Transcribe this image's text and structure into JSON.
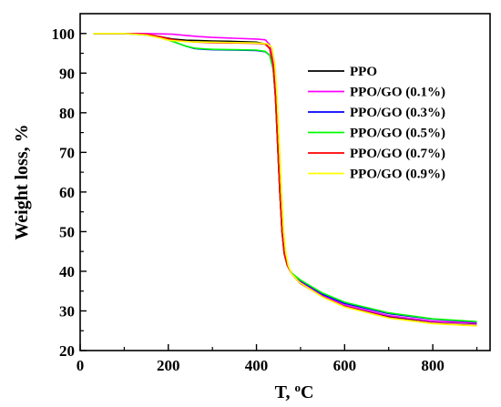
{
  "chart_data": {
    "type": "line",
    "xlabel": "T, °C",
    "ylabel": "Weight loss, %",
    "xlim": [
      0,
      930
    ],
    "ylim": [
      20,
      105
    ],
    "xticks": [
      0,
      200,
      400,
      600,
      800
    ],
    "yticks": [
      20,
      30,
      40,
      50,
      60,
      70,
      80,
      90,
      100
    ],
    "grid": false,
    "legend_position": "right",
    "series": [
      {
        "name": "PPO",
        "color": "#000000",
        "x": [
          30,
          100,
          150,
          180,
          210,
          240,
          270,
          300,
          350,
          400,
          420,
          430,
          438,
          443,
          448,
          453,
          458,
          463,
          470,
          480,
          500,
          550,
          600,
          700,
          800,
          900
        ],
        "y": [
          100,
          100,
          99.8,
          99.2,
          98.6,
          98.3,
          98.2,
          98.1,
          98.0,
          97.8,
          97.4,
          96.2,
          92,
          84,
          72,
          60,
          50,
          44.5,
          41.5,
          39.5,
          37.2,
          33.8,
          31.3,
          28.6,
          27.3,
          26.8
        ]
      },
      {
        "name": "PPO/GO (0.1%)",
        "color": "#ff00ff",
        "x": [
          30,
          100,
          150,
          180,
          210,
          240,
          270,
          300,
          350,
          400,
          420,
          430,
          438,
          443,
          448,
          453,
          458,
          463,
          470,
          480,
          500,
          550,
          600,
          700,
          800,
          900
        ],
        "y": [
          100,
          100,
          100,
          99.9,
          99.8,
          99.5,
          99.2,
          99.0,
          98.8,
          98.6,
          98.4,
          97.2,
          93,
          85,
          72,
          60,
          50,
          44.5,
          41.5,
          39.5,
          37.2,
          33.8,
          31.5,
          28.8,
          27.4,
          26.9
        ]
      },
      {
        "name": "PPO/GO (0.3%)",
        "color": "#0000ff",
        "x": [
          30,
          100,
          150,
          180,
          210,
          240,
          260,
          280,
          300,
          350,
          400,
          420,
          430,
          438,
          443,
          448,
          453,
          458,
          463,
          470,
          480,
          500,
          550,
          600,
          700,
          800,
          900
        ],
        "y": [
          100,
          100,
          99.6,
          99.0,
          98.0,
          96.8,
          96.2,
          96.0,
          95.9,
          95.8,
          95.7,
          95.4,
          94.5,
          91,
          84,
          72,
          60,
          50,
          44.5,
          41.5,
          39.5,
          37.6,
          34.2,
          31.9,
          29.3,
          27.9,
          27.2
        ]
      },
      {
        "name": "PPO/GO (0.5%)",
        "color": "#00ff00",
        "x": [
          30,
          100,
          150,
          180,
          210,
          240,
          260,
          280,
          300,
          350,
          400,
          420,
          430,
          438,
          443,
          448,
          453,
          458,
          463,
          470,
          480,
          500,
          550,
          600,
          700,
          800,
          900
        ],
        "y": [
          100,
          100,
          99.6,
          99.0,
          98.0,
          96.8,
          96.3,
          96.1,
          96.0,
          95.9,
          95.8,
          95.5,
          94.5,
          91,
          84,
          72,
          60,
          50,
          44.5,
          41.5,
          39.5,
          37.8,
          34.5,
          32.2,
          29.5,
          28.0,
          27.3
        ]
      },
      {
        "name": "PPO/GO (0.7%)",
        "color": "#ff0000",
        "x": [
          30,
          100,
          150,
          180,
          210,
          240,
          270,
          300,
          350,
          400,
          420,
          430,
          438,
          443,
          448,
          453,
          458,
          463,
          470,
          480,
          500,
          550,
          600,
          700,
          800,
          900
        ],
        "y": [
          100,
          100,
          99.8,
          99.2,
          98.4,
          98.0,
          97.8,
          97.7,
          97.6,
          97.5,
          97.3,
          96.2,
          92,
          84,
          72,
          60,
          50,
          44.5,
          41.5,
          39.3,
          36.9,
          33.6,
          31.1,
          28.3,
          26.9,
          26.3
        ]
      },
      {
        "name": "PPO/GO (0.9%)",
        "color": "#ffff00",
        "x": [
          30,
          100,
          150,
          180,
          200,
          220,
          250,
          300,
          350,
          400,
          425,
          435,
          442,
          447,
          452,
          457,
          462,
          467,
          472,
          480,
          500,
          550,
          600,
          700,
          800,
          900
        ],
        "y": [
          100,
          100,
          99.6,
          98.9,
          98.3,
          98.1,
          97.9,
          97.8,
          97.7,
          97.6,
          97.4,
          96.5,
          92,
          84,
          72,
          60,
          50,
          44.5,
          41.5,
          39.3,
          37.0,
          33.5,
          31.0,
          28.2,
          26.8,
          26.2
        ]
      }
    ]
  }
}
